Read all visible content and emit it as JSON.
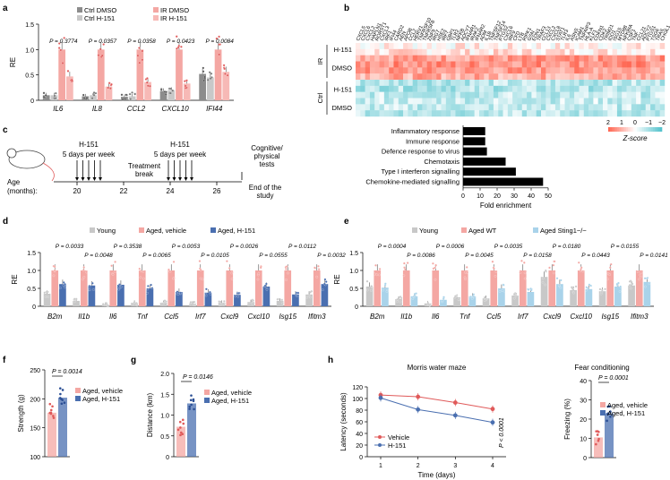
{
  "panels": {
    "a": "a",
    "b": "b",
    "c": "c",
    "d": "d",
    "e": "e",
    "f": "f",
    "g": "g",
    "h": "h"
  },
  "colors": {
    "grey": "#8c8c8c",
    "lightgrey": "#c8c8c8",
    "salmon": "#f4a7a3",
    "red": "#e05a5a",
    "blue": "#4a6fb0",
    "lightblue": "#a9d3ea",
    "dark": "#222222"
  },
  "chart_data": [
    {
      "id": "a",
      "type": "bar",
      "ylabel": "RE",
      "ylim": [
        0,
        1.5
      ],
      "yticks": [
        "0",
        "0.5",
        "1.0",
        "1.5"
      ],
      "categories": [
        "IL6",
        "IL8",
        "CCL2",
        "CXCL10",
        "IFI44"
      ],
      "legend": [
        "Ctrl DMSO",
        "Ctrl H-151",
        "IR DMSO",
        "IR H-151"
      ],
      "series": [
        {
          "name": "Ctrl DMSO",
          "values": [
            0.1,
            0.08,
            0.07,
            0.18,
            0.52
          ]
        },
        {
          "name": "Ctrl H-151",
          "values": [
            0.1,
            0.1,
            0.08,
            0.2,
            0.45
          ]
        },
        {
          "name": "IR DMSO",
          "values": [
            1.0,
            1.0,
            1.0,
            1.0,
            1.0
          ]
        },
        {
          "name": "IR H-151",
          "values": [
            0.47,
            0.27,
            0.36,
            0.33,
            0.56
          ]
        }
      ],
      "pvalues": [
        "P = 0.3774",
        "P = 0.0357",
        "P = 0.0358",
        "P = 0.0423",
        "P = 0.0084"
      ]
    },
    {
      "id": "b",
      "type": "heatmap",
      "genes": [
        "CXCL5",
        "CXCL6",
        "CXCL2",
        "HAPLN1",
        "RORST1",
        "CXCL3",
        "IRF1",
        "IFI44",
        "CARD2",
        "AEN",
        "APOB",
        "CCL2",
        "HERV1",
        "TNFRSF10",
        "TNFRSF8",
        "ZNF9",
        "IRG7",
        "HSE2",
        "IRF7",
        "GBP1",
        "TLR2",
        "NFKB",
        "ADCY7",
        "IFNAR1",
        "IRAK2",
        "IFNAR2",
        "ADM",
        "IL1B",
        "TNFSF12",
        "TNFSF14",
        "PTGS2",
        "CXCL6",
        "IRF9",
        "CFD",
        "LTB",
        "RIPK1",
        "GSN",
        "EDN1",
        "TRAF3",
        "CCL13",
        "CXCL2",
        "CXCL8",
        "STAT1",
        "TLR3",
        "IL6",
        "ASNS",
        "ICAM1",
        "TNFAIP3",
        "HLA-A",
        "KLF1",
        "CDKN1",
        "CDK2",
        "TRIM21",
        "IDO1",
        "ISG15",
        "MYD88",
        "NFKBIA",
        "CSF1",
        "TNF",
        "CCL21",
        "ADCY2",
        "PTGS1",
        "TSG6",
        "TRAIL",
        "CHI3L1"
      ],
      "conditions": [
        "H-151",
        "DMSO",
        "H-151",
        "DMSO"
      ],
      "groups": [
        "IR",
        "Ctrl"
      ],
      "legend_ticks": [
        "2",
        "1",
        "0",
        "−1",
        "−2"
      ],
      "legend_label": "Z-score"
    },
    {
      "id": "c-enrichment",
      "type": "bar",
      "categories": [
        "Inflammatory response",
        "Immune response",
        "Defence response to virus",
        "Chemotaxis",
        "Type I interferon signalling",
        "Chemokine-mediated signalling"
      ],
      "values": [
        13,
        13,
        14,
        25,
        31,
        47
      ],
      "xlabel": "Fold enrichment",
      "xlim": [
        0,
        50
      ],
      "xticks": [
        "0",
        "10",
        "20",
        "30",
        "40",
        "50"
      ]
    },
    {
      "id": "d",
      "type": "bar",
      "ylabel": "RE",
      "ylim": [
        0,
        1.5
      ],
      "yticks": [
        "0",
        "0.5",
        "1.0",
        "1.5"
      ],
      "categories": [
        "B2m",
        "Il1b",
        "Il6",
        "Tnf",
        "Ccl5",
        "Irf7",
        "Cxcl9",
        "Cxcl10",
        "Isg15",
        "Ifitm3"
      ],
      "legend": [
        "Young",
        "Aged, vehicle",
        "Aged, H-151"
      ],
      "series": [
        {
          "name": "Young",
          "values": [
            0.35,
            0.15,
            0.05,
            0.1,
            0.1,
            0.08,
            0.1,
            0.12,
            0.15,
            0.33
          ]
        },
        {
          "name": "Aged, vehicle",
          "values": [
            1.0,
            1.0,
            1.0,
            1.0,
            1.0,
            1.0,
            1.0,
            1.0,
            1.0,
            1.0
          ]
        },
        {
          "name": "Aged, H-151",
          "values": [
            0.62,
            0.58,
            0.6,
            0.5,
            0.4,
            0.38,
            0.32,
            0.55,
            0.33,
            0.62
          ]
        }
      ],
      "pvalues_top": [
        "P = 0.0033",
        "P = 0.3538",
        "P = 0.0053",
        "P = 0.0026",
        "P = 0.0112"
      ],
      "pvalues_bottom": [
        "P = 0.0048",
        "P = 0.0065",
        "P = 0.0105",
        "P = 0.0555",
        "P = 0.0032"
      ]
    },
    {
      "id": "e",
      "type": "bar",
      "ylabel": "RE",
      "ylim": [
        0,
        1.5
      ],
      "yticks": [
        "0",
        "0.5",
        "1.0",
        "1.5"
      ],
      "categories": [
        "B2m",
        "Il1b",
        "Il6",
        "Tnf",
        "Ccl5",
        "Irf7",
        "Cxcl9",
        "Cxcl10",
        "Isg15",
        "Ifitm3"
      ],
      "legend": [
        "Young",
        "Aged WT",
        "Aged Sting1−/−"
      ],
      "series": [
        {
          "name": "Young",
          "values": [
            0.55,
            0.2,
            0.08,
            0.25,
            0.22,
            0.3,
            0.82,
            0.45,
            0.42,
            0.58
          ]
        },
        {
          "name": "Aged WT",
          "values": [
            1.0,
            1.0,
            1.0,
            1.0,
            1.0,
            1.0,
            1.0,
            1.0,
            1.0,
            1.0
          ]
        },
        {
          "name": "Aged Sting1−/−",
          "values": [
            0.52,
            0.28,
            0.18,
            0.28,
            0.5,
            0.4,
            0.62,
            0.48,
            0.55,
            0.68
          ]
        }
      ],
      "pvalues_top": [
        "P = 0.0004",
        "P = 0.0006",
        "P = 0.0035",
        "P = 0.0180",
        "P = 0.0155"
      ],
      "pvalues_bottom": [
        "P = 0.0086",
        "P = 0.0045",
        "P = 0.0158",
        "P = 0.0443",
        "P = 0.0141"
      ]
    },
    {
      "id": "f",
      "type": "bar",
      "ylabel": "Strength (g)",
      "ylim": [
        100,
        250
      ],
      "yticks": [
        "100",
        "150",
        "200",
        "250"
      ],
      "legend": [
        "Aged, vehicle",
        "Aged, H-151"
      ],
      "values": [
        176,
        202
      ],
      "pvalue": "P = 0.0014"
    },
    {
      "id": "g",
      "type": "bar",
      "ylabel": "Distance (km)",
      "ylim": [
        0,
        2.0
      ],
      "yticks": [
        "0",
        "0.5",
        "1.0",
        "1.5",
        "2.0"
      ],
      "legend": [
        "Aged, vehicle",
        "Aged, H-151"
      ],
      "values": [
        0.72,
        1.28
      ],
      "pvalue": "P = 0.0146"
    },
    {
      "id": "h-mwm",
      "type": "line",
      "title": "Morris water maze",
      "xlabel": "Time (days)",
      "ylabel": "Latency (seconds)",
      "ylim": [
        0,
        120
      ],
      "yticks": [
        "0",
        "20",
        "40",
        "60",
        "80",
        "100",
        "120"
      ],
      "x": [
        "1",
        "2",
        "3",
        "4"
      ],
      "series": [
        {
          "name": "Vehicle",
          "values": [
            106,
            103,
            93,
            82
          ]
        },
        {
          "name": "H-151",
          "values": [
            101,
            81,
            71,
            59
          ]
        }
      ],
      "pvalue": "P < 0.0001"
    },
    {
      "id": "h-fear",
      "type": "bar",
      "title": "Fear conditioning",
      "ylabel": "Freezing (%)",
      "ylim": [
        0,
        40
      ],
      "yticks": [
        "0",
        "10",
        "20",
        "30",
        "40"
      ],
      "legend": [
        "Aged, vehicle",
        "Aged, H-151"
      ],
      "values": [
        10.5,
        23
      ],
      "pvalue": "P = 0.0001"
    }
  ],
  "timeline": {
    "age_label": "Age",
    "months_label": "(months):",
    "ticks": [
      "20",
      "22",
      "24",
      "26"
    ],
    "h151_a": "H-151",
    "days_a": "5 days per week",
    "h151_b": "H-151",
    "days_b": "5 days per week",
    "treatment_break": "Treatment\nbreak",
    "tests": "Cognitive/\nphysical\ntests",
    "end": "End of the\nstudy"
  }
}
